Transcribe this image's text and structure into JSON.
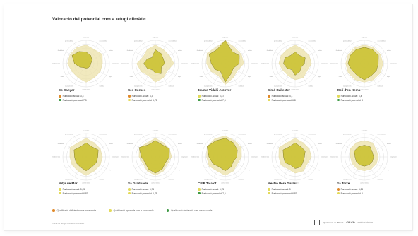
{
  "page": {
    "title": "Valoració del potencial com a refugi climàtic",
    "footer_note": "Xarxa de refugis climàtics de Mataró",
    "footer_org": "Ajuntament de Mataró",
    "footer_brand": "CALCO",
    "footer_brand_sub": "arquitectura i urbanisme"
  },
  "colors": {
    "deficient": "#e0892a",
    "aprovada": "#e3da5a",
    "destacada": "#3f9a45",
    "potential_fill": "#ece2a8",
    "actual_fill": "#c9bf2a"
  },
  "legend": [
    {
      "label": "Qualificació deficient com a zona verda",
      "color": "#e0892a"
    },
    {
      "label": "Qualificació aprovada com a zona verda",
      "color": "#e3da5a"
    },
    {
      "label": "Qualificació destacada com a zona verda",
      "color": "#3f9a45"
    }
  ],
  "chart_data": [
    {
      "type": "radar",
      "title": "Es Canyar",
      "axes": [
        "superficie",
        "accessibilitat",
        "ombra",
        "vegetació",
        "aigua",
        "mobiliari",
        "confort tèrmic",
        "equipaments",
        "usos",
        "biodiversitat",
        "flexibilitat",
        "permeabilitat"
      ],
      "rmax": 10,
      "series": [
        {
          "name": "Puntuació actual",
          "values": [
            5,
            4,
            3,
            2,
            2,
            2,
            2,
            2,
            3,
            5,
            7,
            6
          ]
        },
        {
          "name": "Puntuació potencial",
          "values": [
            8,
            7,
            8,
            7,
            7,
            7,
            8,
            7,
            7,
            8,
            8,
            8
          ]
        }
      ],
      "score_actual_label": "Puntuació actual: 3,3",
      "score_potencial_label": "Puntuació potencial: 7,5",
      "actual_color": "#e0892a",
      "potencial_color": "#3f9a45"
    },
    {
      "type": "radar",
      "title": "Ses Cornes",
      "axes": [
        "superficie",
        "accessibilitat",
        "ombra",
        "vegetació",
        "aigua",
        "mobiliari",
        "confort tèrmic",
        "equipaments",
        "usos",
        "biodiversitat",
        "flexibilitat",
        "permeabilitat"
      ],
      "rmax": 10,
      "series": [
        {
          "name": "Puntuació actual",
          "values": [
            6,
            5,
            4,
            4,
            3,
            5,
            4,
            3,
            4,
            5,
            4,
            3
          ]
        },
        {
          "name": "Puntuació potencial",
          "values": [
            8,
            7,
            7,
            8,
            6,
            7,
            8,
            6,
            7,
            8,
            6,
            7
          ]
        }
      ],
      "score_actual_label": "Puntuació actual: 4,3",
      "score_potencial_label": "Puntuació potencial: 6,75",
      "actual_color": "#e0892a",
      "potencial_color": "#e3da5a"
    },
    {
      "type": "radar",
      "title": "Jaume Vidal i Alcover",
      "axes": [
        "superficie",
        "accessibilitat",
        "ombra",
        "vegetació",
        "aigua",
        "mobiliari",
        "confort tèrmic",
        "equipaments",
        "usos",
        "biodiversitat",
        "flexibilitat",
        "permeabilitat"
      ],
      "rmax": 10,
      "series": [
        {
          "name": "Puntuació actual",
          "values": [
            10,
            6,
            7,
            6,
            4,
            5,
            8,
            4,
            5,
            6,
            8,
            7
          ]
        },
        {
          "name": "Puntuació potencial",
          "values": [
            10,
            8,
            8,
            8,
            6,
            7,
            9,
            6,
            7,
            8,
            9,
            8
          ]
        }
      ],
      "score_actual_label": "Puntuació actual: 5,87",
      "score_potencial_label": "Puntuació potencial: 7,5",
      "actual_color": "#e3da5a",
      "potencial_color": "#3f9a45"
    },
    {
      "type": "radar",
      "title": "Simó Ballester",
      "axes": [
        "superficie",
        "accessibilitat",
        "ombra",
        "vegetació",
        "aigua",
        "mobiliari",
        "confort tèrmic",
        "equipaments",
        "usos",
        "biodiversitat",
        "flexibilitat",
        "permeabilitat"
      ],
      "rmax": 10,
      "series": [
        {
          "name": "Puntuació actual",
          "values": [
            5,
            4,
            5,
            4,
            3,
            4,
            5,
            3,
            4,
            5,
            5,
            4
          ]
        },
        {
          "name": "Puntuació potencial",
          "values": [
            8,
            7,
            7,
            7,
            6,
            7,
            7,
            6,
            6,
            7,
            7,
            7
          ]
        }
      ],
      "score_actual_label": "Puntuació actual: 4,1",
      "score_potencial_label": "Puntuació potencial: 6,8",
      "actual_color": "#e0892a",
      "potencial_color": "#e3da5a"
    },
    {
      "type": "radar",
      "title": "Molí d'en Xema",
      "axes": [
        "superficie",
        "accessibilitat",
        "ombra",
        "vegetació",
        "aigua",
        "mobiliari",
        "confort tèrmic",
        "equipaments",
        "usos",
        "biodiversitat",
        "flexibilitat",
        "permeabilitat"
      ],
      "rmax": 10,
      "series": [
        {
          "name": "Puntuació actual",
          "values": [
            7,
            7,
            7,
            6,
            6,
            6,
            7,
            6,
            6,
            7,
            7,
            7
          ]
        },
        {
          "name": "Puntuació potencial",
          "values": [
            8,
            8,
            8,
            8,
            8,
            8,
            8,
            8,
            8,
            8,
            8,
            8
          ]
        }
      ],
      "score_actual_label": "Puntuació actual: 6,4",
      "score_potencial_label": "Puntuació potencial: 8",
      "actual_color": "#e3da5a",
      "potencial_color": "#3f9a45"
    },
    {
      "type": "radar",
      "title": "Mitja de Mar",
      "axes": [
        "superficie",
        "accessibilitat",
        "ombra",
        "vegetació",
        "aigua",
        "mobiliari",
        "confort tèrmic",
        "equipaments",
        "usos",
        "biodiversitat",
        "flexibilitat",
        "permeabilitat"
      ],
      "rmax": 10,
      "series": [
        {
          "name": "Puntuació actual",
          "values": [
            6,
            5,
            6,
            5,
            5,
            5,
            6,
            5,
            5,
            5,
            6,
            5
          ]
        },
        {
          "name": "Puntuació potencial",
          "values": [
            8,
            7,
            7,
            7,
            7,
            7,
            8,
            7,
            7,
            7,
            8,
            7
          ]
        }
      ],
      "score_actual_label": "Puntuació actual: 5,25",
      "score_potencial_label": "Puntuació potencial: 6,87",
      "actual_color": "#e3da5a",
      "potencial_color": "#e3da5a"
    },
    {
      "type": "radar",
      "title": "Sa Graduada",
      "axes": [
        "superficie",
        "accessibilitat",
        "ombra",
        "vegetació",
        "aigua",
        "mobiliari",
        "confort tèrmic",
        "equipaments",
        "usos",
        "biodiversitat",
        "flexibilitat",
        "permeabilitat"
      ],
      "rmax": 10,
      "series": [
        {
          "name": "Puntuació actual",
          "values": [
            7,
            6,
            7,
            6,
            5,
            6,
            7,
            6,
            5,
            6,
            8,
            6
          ]
        },
        {
          "name": "Puntuació potencial",
          "values": [
            8,
            7,
            7,
            7,
            6,
            7,
            8,
            7,
            6,
            7,
            8,
            7
          ]
        }
      ],
      "score_actual_label": "Puntuació actual: 5,75",
      "score_potencial_label": "Puntuació potencial: 6,75",
      "actual_color": "#e3da5a",
      "potencial_color": "#e3da5a"
    },
    {
      "type": "radar",
      "title": "CEIP Talaiot",
      "axes": [
        "superficie",
        "accessibilitat",
        "ombra",
        "vegetació",
        "aigua",
        "mobiliari",
        "confort tèrmic",
        "equipaments",
        "usos",
        "biodiversitat",
        "flexibilitat",
        "permeabilitat"
      ],
      "rmax": 10,
      "series": [
        {
          "name": "Puntuació actual",
          "values": [
            8,
            7,
            6,
            5,
            4,
            5,
            6,
            5,
            6,
            7,
            9,
            8
          ]
        },
        {
          "name": "Puntuació potencial",
          "values": [
            9,
            8,
            8,
            7,
            6,
            7,
            8,
            7,
            8,
            8,
            9,
            9
          ]
        }
      ],
      "score_actual_label": "Puntuació actual: 5,75",
      "score_potencial_label": "Puntuació potencial: 7,6",
      "actual_color": "#e3da5a",
      "potencial_color": "#3f9a45"
    },
    {
      "type": "radar",
      "title": "Mestre Pere Garau",
      "axes": [
        "superficie",
        "accessibilitat",
        "ombra",
        "vegetació",
        "aigua",
        "mobiliari",
        "confort tèrmic",
        "equipaments",
        "usos",
        "biodiversitat",
        "flexibilitat",
        "permeabilitat"
      ],
      "rmax": 10,
      "series": [
        {
          "name": "Puntuació actual",
          "values": [
            6,
            5,
            5,
            4,
            4,
            5,
            5,
            4,
            5,
            5,
            6,
            5
          ]
        },
        {
          "name": "Puntuació potencial",
          "values": [
            8,
            7,
            7,
            7,
            6,
            7,
            7,
            6,
            7,
            7,
            8,
            7
          ]
        }
      ],
      "score_actual_label": "Puntuació actual: 5",
      "score_potencial_label": "Puntuació potencial: 6,87",
      "actual_color": "#e3da5a",
      "potencial_color": "#e3da5a"
    },
    {
      "type": "radar",
      "title": "Sa Torre",
      "axes": [
        "superficie",
        "accessibilitat",
        "ombra",
        "vegetació",
        "aigua",
        "mobiliari",
        "confort tèrmic",
        "equipaments",
        "usos",
        "biodiversitat",
        "flexibilitat",
        "permeabilitat"
      ],
      "rmax": 10,
      "series": [
        {
          "name": "Puntuació actual",
          "values": [
            5,
            5,
            4,
            4,
            4,
            4,
            4,
            4,
            4,
            4,
            5,
            5
          ]
        },
        {
          "name": "Puntuació potencial",
          "values": [
            7,
            7,
            6,
            6,
            6,
            6,
            6,
            6,
            6,
            6,
            7,
            7
          ]
        }
      ],
      "score_actual_label": "Puntuació actual: 4,25",
      "score_potencial_label": "Puntuació potencial: 6",
      "actual_color": "#e0892a",
      "potencial_color": "#e3da5a"
    }
  ]
}
